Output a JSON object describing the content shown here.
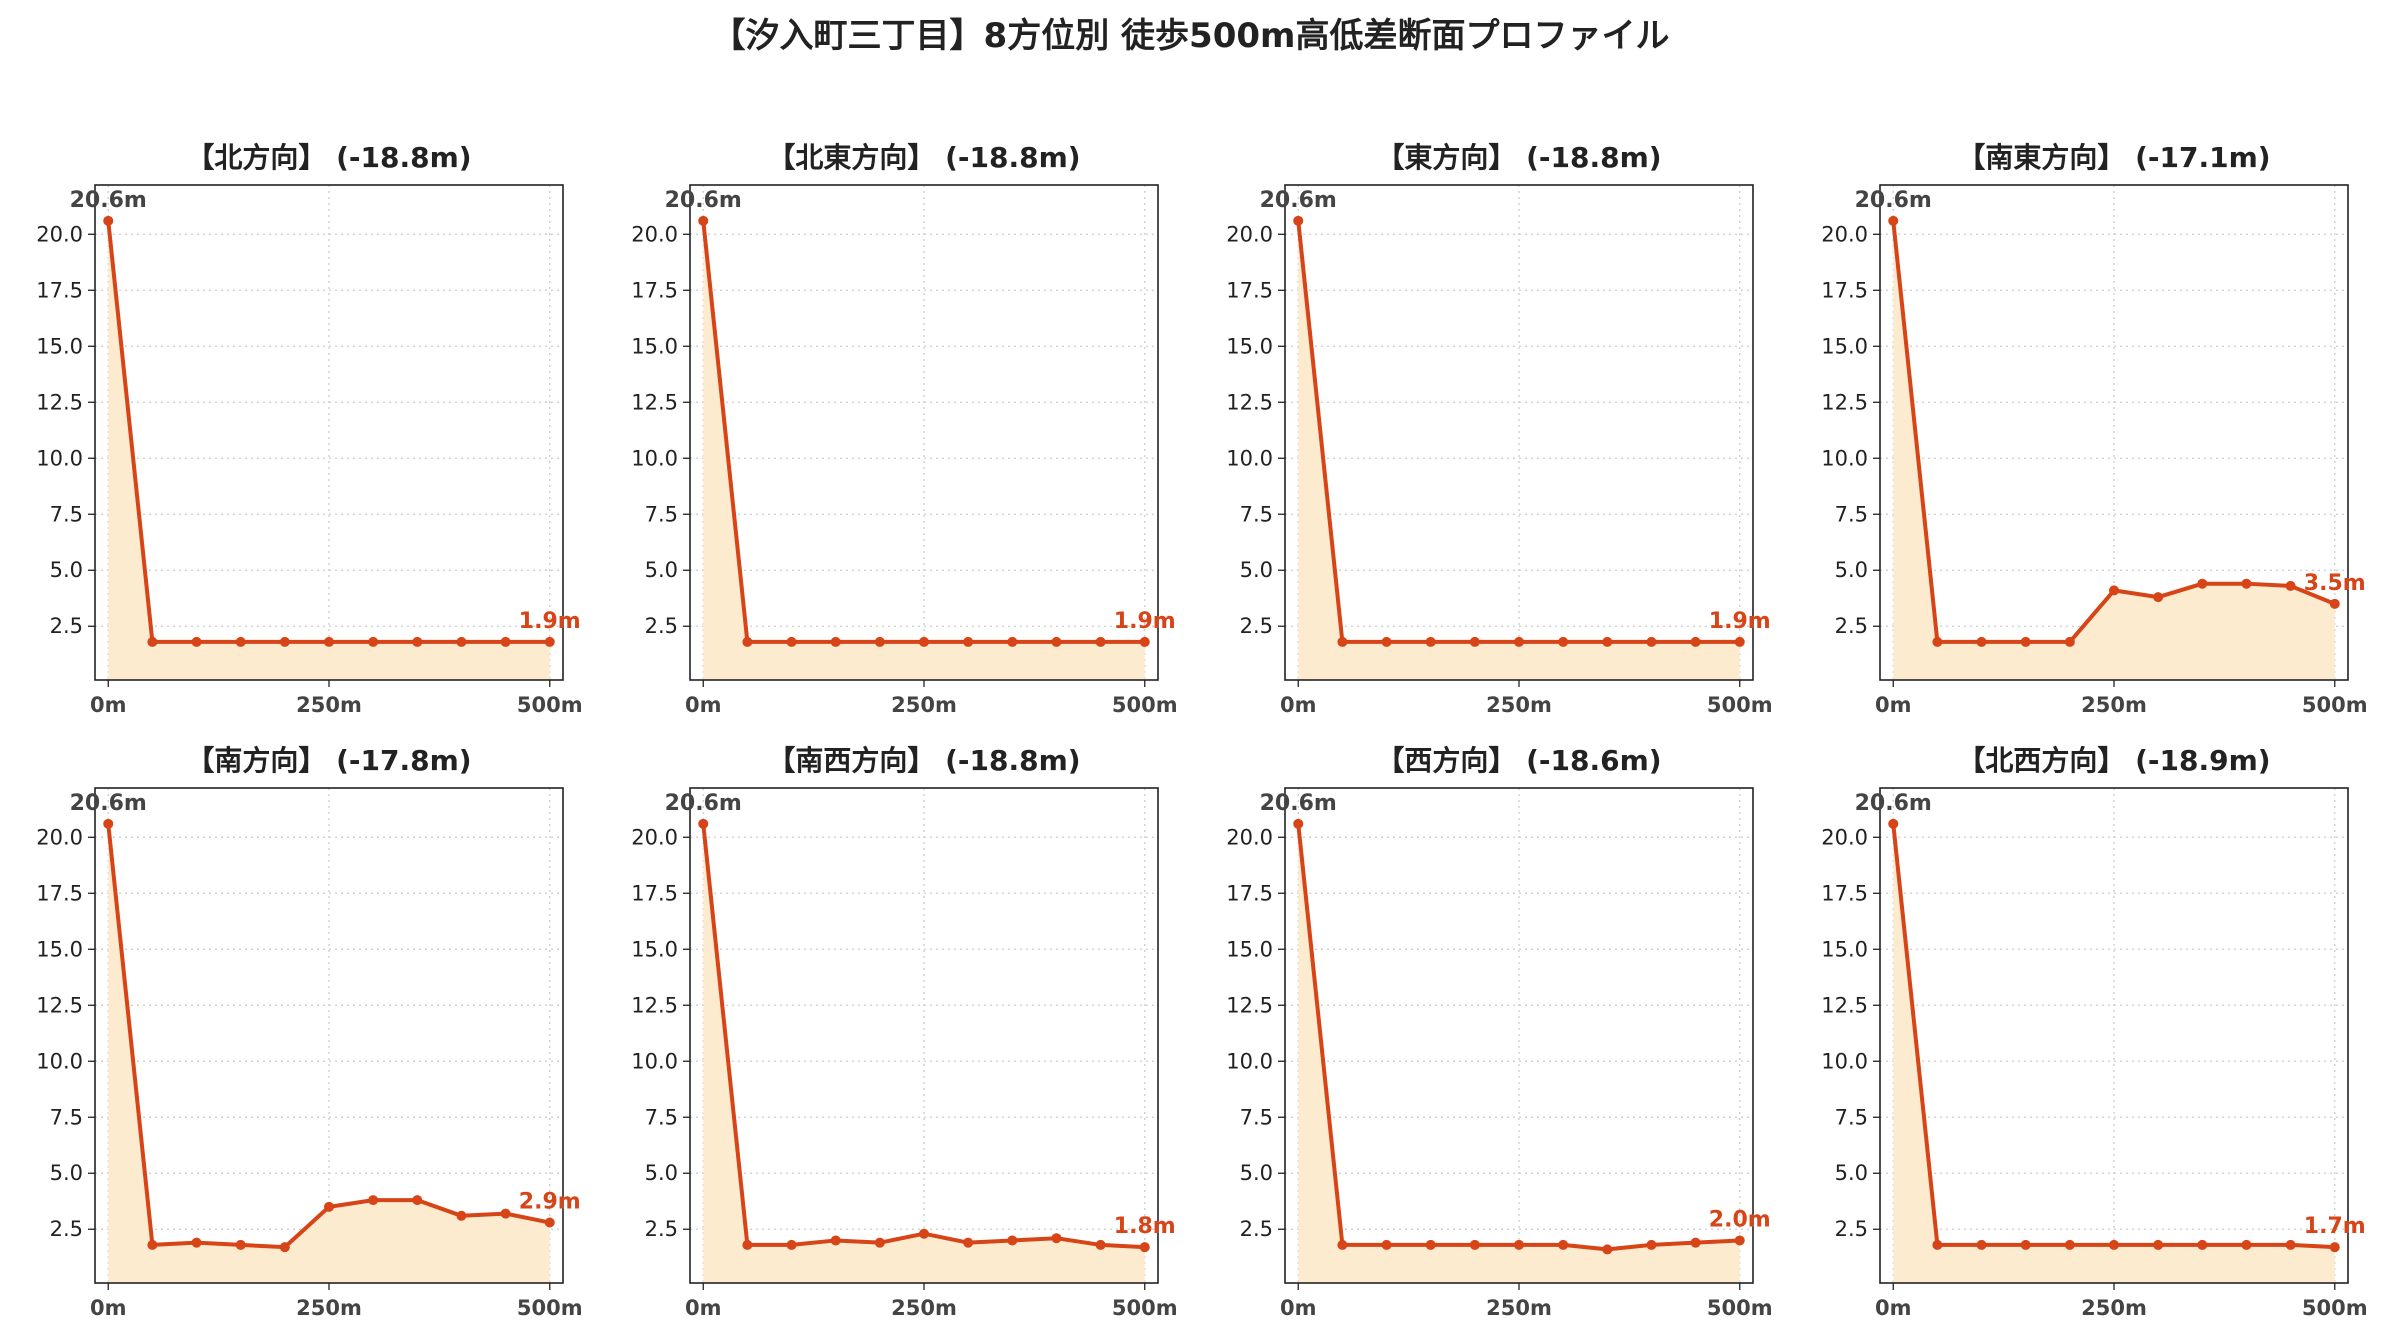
{
  "title": "【汐入町三丁目】8方位別 徒歩500m高低差断面プロファイル",
  "colors": {
    "line": "#d64417",
    "fill": "#fdebd0",
    "end_label": "#d64417",
    "start_label": "#444444",
    "grid": "#cccccc"
  },
  "chart_data": [
    {
      "type": "area",
      "title": "【北方向】 (-18.8m)",
      "x": [
        0,
        50,
        100,
        150,
        200,
        250,
        300,
        350,
        400,
        450,
        500
      ],
      "values": [
        20.6,
        1.8,
        1.8,
        1.8,
        1.8,
        1.8,
        1.8,
        1.8,
        1.8,
        1.8,
        1.8
      ],
      "start_label": "20.6m",
      "end_label": "1.9m",
      "yticks": [
        "20.0",
        "17.5",
        "15.0",
        "12.5",
        "10.0",
        "7.5",
        "5.0",
        "2.5"
      ],
      "xticks": [
        "0m",
        "250m",
        "500m"
      ],
      "xlim": [
        -15,
        515
      ],
      "ylim": [
        0.1,
        22.2
      ],
      "grid": true
    },
    {
      "type": "area",
      "title": "【北東方向】 (-18.8m)",
      "x": [
        0,
        50,
        100,
        150,
        200,
        250,
        300,
        350,
        400,
        450,
        500
      ],
      "values": [
        20.6,
        1.8,
        1.8,
        1.8,
        1.8,
        1.8,
        1.8,
        1.8,
        1.8,
        1.8,
        1.8
      ],
      "start_label": "20.6m",
      "end_label": "1.9m",
      "yticks": [
        "20.0",
        "17.5",
        "15.0",
        "12.5",
        "10.0",
        "7.5",
        "5.0",
        "2.5"
      ],
      "xticks": [
        "0m",
        "250m",
        "500m"
      ],
      "xlim": [
        -15,
        515
      ],
      "ylim": [
        0.1,
        22.2
      ],
      "grid": true
    },
    {
      "type": "area",
      "title": "【東方向】 (-18.8m)",
      "x": [
        0,
        50,
        100,
        150,
        200,
        250,
        300,
        350,
        400,
        450,
        500
      ],
      "values": [
        20.6,
        1.8,
        1.8,
        1.8,
        1.8,
        1.8,
        1.8,
        1.8,
        1.8,
        1.8,
        1.8
      ],
      "start_label": "20.6m",
      "end_label": "1.9m",
      "yticks": [
        "20.0",
        "17.5",
        "15.0",
        "12.5",
        "10.0",
        "7.5",
        "5.0",
        "2.5"
      ],
      "xticks": [
        "0m",
        "250m",
        "500m"
      ],
      "xlim": [
        -15,
        515
      ],
      "ylim": [
        0.1,
        22.2
      ],
      "grid": true
    },
    {
      "type": "area",
      "title": "【南東方向】 (-17.1m)",
      "x": [
        0,
        50,
        100,
        150,
        200,
        250,
        300,
        350,
        400,
        450,
        500
      ],
      "values": [
        20.6,
        1.8,
        1.8,
        1.8,
        1.8,
        4.1,
        3.8,
        4.4,
        4.4,
        4.3,
        3.5
      ],
      "start_label": "20.6m",
      "end_label": "3.5m",
      "yticks": [
        "20.0",
        "17.5",
        "15.0",
        "12.5",
        "10.0",
        "7.5",
        "5.0",
        "2.5"
      ],
      "xticks": [
        "0m",
        "250m",
        "500m"
      ],
      "xlim": [
        -15,
        515
      ],
      "ylim": [
        0.1,
        22.2
      ],
      "grid": true
    },
    {
      "type": "area",
      "title": "【南方向】 (-17.8m)",
      "x": [
        0,
        50,
        100,
        150,
        200,
        250,
        300,
        350,
        400,
        450,
        500
      ],
      "values": [
        20.6,
        1.8,
        1.9,
        1.8,
        1.7,
        3.5,
        3.8,
        3.8,
        3.1,
        3.2,
        2.8
      ],
      "start_label": "20.6m",
      "end_label": "2.9m",
      "yticks": [
        "20.0",
        "17.5",
        "15.0",
        "12.5",
        "10.0",
        "7.5",
        "5.0",
        "2.5"
      ],
      "xticks": [
        "0m",
        "250m",
        "500m"
      ],
      "xlim": [
        -15,
        515
      ],
      "ylim": [
        0.1,
        22.2
      ],
      "grid": true
    },
    {
      "type": "area",
      "title": "【南西方向】 (-18.8m)",
      "x": [
        0,
        50,
        100,
        150,
        200,
        250,
        300,
        350,
        400,
        450,
        500
      ],
      "values": [
        20.6,
        1.8,
        1.8,
        2.0,
        1.9,
        2.3,
        1.9,
        2.0,
        2.1,
        1.8,
        1.7
      ],
      "start_label": "20.6m",
      "end_label": "1.8m",
      "yticks": [
        "20.0",
        "17.5",
        "15.0",
        "12.5",
        "10.0",
        "7.5",
        "5.0",
        "2.5"
      ],
      "xticks": [
        "0m",
        "250m",
        "500m"
      ],
      "xlim": [
        -15,
        515
      ],
      "ylim": [
        0.1,
        22.2
      ],
      "grid": true
    },
    {
      "type": "area",
      "title": "【西方向】 (-18.6m)",
      "x": [
        0,
        50,
        100,
        150,
        200,
        250,
        300,
        350,
        400,
        450,
        500
      ],
      "values": [
        20.6,
        1.8,
        1.8,
        1.8,
        1.8,
        1.8,
        1.8,
        1.6,
        1.8,
        1.9,
        2.0
      ],
      "start_label": "20.6m",
      "end_label": "2.0m",
      "yticks": [
        "20.0",
        "17.5",
        "15.0",
        "12.5",
        "10.0",
        "7.5",
        "5.0",
        "2.5"
      ],
      "xticks": [
        "0m",
        "250m",
        "500m"
      ],
      "xlim": [
        -15,
        515
      ],
      "ylim": [
        0.1,
        22.2
      ],
      "grid": true
    },
    {
      "type": "area",
      "title": "【北西方向】 (-18.9m)",
      "x": [
        0,
        50,
        100,
        150,
        200,
        250,
        300,
        350,
        400,
        450,
        500
      ],
      "values": [
        20.6,
        1.8,
        1.8,
        1.8,
        1.8,
        1.8,
        1.8,
        1.8,
        1.8,
        1.8,
        1.7
      ],
      "start_label": "20.6m",
      "end_label": "1.7m",
      "yticks": [
        "20.0",
        "17.5",
        "15.0",
        "12.5",
        "10.0",
        "7.5",
        "5.0",
        "2.5"
      ],
      "xticks": [
        "0m",
        "250m",
        "500m"
      ],
      "xlim": [
        -15,
        515
      ],
      "ylim": [
        0.1,
        22.2
      ],
      "grid": true
    }
  ]
}
